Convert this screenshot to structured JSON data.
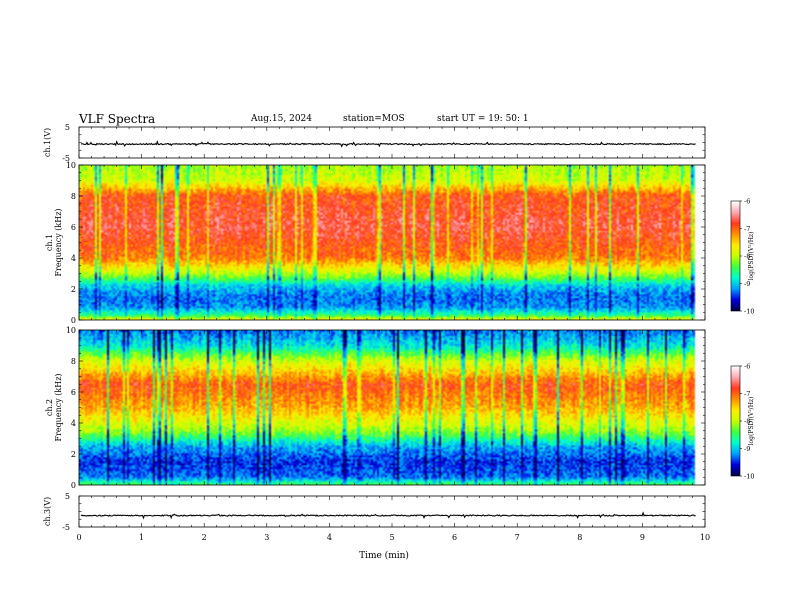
{
  "header": {
    "title": "VLF Spectra",
    "date": "Aug.15, 2024",
    "station": "station=MOS",
    "start": "start  UT =   19: 50: 1"
  },
  "chart_data": [
    {
      "type": "line",
      "panel": "ch1-waveform",
      "ylabel": "ch.1(V)",
      "ylim": [
        -5,
        5
      ],
      "yticks": [
        "5",
        "-5"
      ],
      "baseline": -0.5
    },
    {
      "type": "heatmap",
      "panel": "ch1-spectrogram",
      "ylabel_top": "ch.1",
      "ylabel": "Frequency  (kHz)",
      "ylim": [
        0,
        10
      ],
      "yticks": [
        "0",
        "2",
        "4",
        "6",
        "8",
        "10"
      ],
      "colorbar": {
        "range": [
          -10,
          -6
        ],
        "ticks": [
          "-6",
          "-7",
          "-8",
          "-9",
          "-10"
        ],
        "label": "log(PSD)(V²/Hz)"
      },
      "profile_khz_log_psd": [
        [
          0,
          -7.6
        ],
        [
          0.3,
          -8.5
        ],
        [
          0.8,
          -9.2
        ],
        [
          1.5,
          -9.3
        ],
        [
          2.2,
          -9.0
        ],
        [
          3.0,
          -8.0
        ],
        [
          4.0,
          -7.1
        ],
        [
          6.0,
          -6.7
        ],
        [
          8.0,
          -6.9
        ],
        [
          9.0,
          -7.9
        ],
        [
          10,
          -8.1
        ]
      ]
    },
    {
      "type": "heatmap",
      "panel": "ch2-spectrogram",
      "ylabel_top": "ch.2",
      "ylabel": "Frequency  (kHz)",
      "ylim": [
        0,
        10
      ],
      "yticks": [
        "0",
        "2",
        "4",
        "6",
        "8",
        "10"
      ],
      "colorbar": {
        "range": [
          -10,
          -6
        ],
        "ticks": [
          "-6",
          "-7",
          "-8",
          "-9",
          "-10"
        ],
        "label": "log(PSD)(V²/Hz)"
      },
      "profile_khz_log_psd": [
        [
          0,
          -8.4
        ],
        [
          0.5,
          -9.3
        ],
        [
          1.5,
          -9.5
        ],
        [
          2.5,
          -9.1
        ],
        [
          3.5,
          -8.1
        ],
        [
          5.0,
          -7.3
        ],
        [
          6.5,
          -6.9
        ],
        [
          8.0,
          -7.9
        ],
        [
          9.0,
          -8.9
        ],
        [
          10,
          -9.3
        ]
      ]
    },
    {
      "type": "line",
      "panel": "ch3-waveform",
      "ylabel": "ch.3(V)",
      "ylim": [
        -5,
        5
      ],
      "yticks": [
        "5",
        "-5"
      ],
      "baseline": -1.3
    }
  ],
  "xaxis": {
    "label": "Time  (min)",
    "xlim": [
      0,
      10
    ],
    "ticks": [
      "0",
      "1",
      "2",
      "3",
      "4",
      "5",
      "6",
      "7",
      "8",
      "9",
      "10"
    ],
    "data_end": 9.85
  },
  "colormap": [
    "#00004a",
    "#0000e0",
    "#00a0ff",
    "#00ffd0",
    "#40ff40",
    "#c8ff00",
    "#ffee00",
    "#ff9000",
    "#ff3a20",
    "#ffa8b0",
    "#ffffff"
  ]
}
